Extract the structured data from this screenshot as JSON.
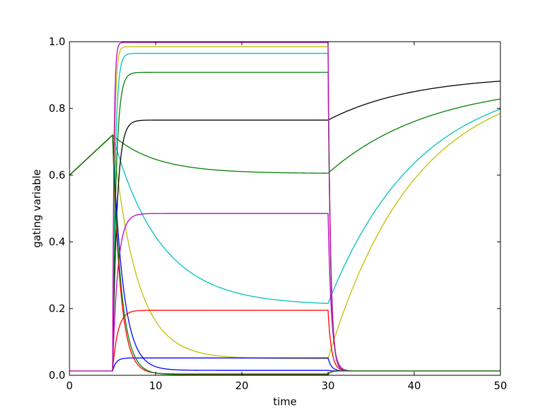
{
  "chart_data": {
    "type": "line",
    "title": "",
    "xlabel": "time",
    "ylabel": "gating variable",
    "xlim": [
      0,
      50
    ],
    "ylim": [
      0,
      1
    ],
    "xticks": [
      0,
      10,
      20,
      30,
      40,
      50
    ],
    "yticks": [
      0.0,
      0.2,
      0.4,
      0.6,
      0.8,
      1.0
    ],
    "xtick_labels": [
      "0",
      "10",
      "20",
      "30",
      "40",
      "50"
    ],
    "ytick_labels": [
      "0.0",
      "0.2",
      "0.4",
      "0.6",
      "0.8",
      "1.0"
    ],
    "grid": false,
    "legend": "none",
    "stimulus": {
      "on": 5,
      "off": 30
    },
    "series": [
      {
        "color": "#008000",
        "rest": 0.6,
        "pre_rise": 0.72,
        "during_target": 0.605,
        "tau_during": 5.0,
        "post_target": 0.88,
        "tau_post": 12.0
      },
      {
        "color": "#00bfbf",
        "rest": 0.6,
        "pre_rise": 0.72,
        "during_target": 0.21,
        "tau_during": 5.5,
        "post_target": 0.9,
        "tau_post": 10.5
      },
      {
        "color": "#bfbf00",
        "rest": 0.6,
        "pre_rise": 0.72,
        "during_target": 0.05,
        "tau_during": 2.8,
        "post_target": 0.9,
        "tau_post": 10.0
      },
      {
        "color": "#000000",
        "rest": 0.013,
        "during_target": 0.765,
        "tau_during": 0.5,
        "post_target": 0.9,
        "tau_post": 10.0
      },
      {
        "color": "#bf00bf",
        "rest": 0.013,
        "during_target": 0.485,
        "tau_during": 0.6,
        "post_target": 0.013,
        "tau_post": 0.4
      },
      {
        "color": "#ff0000",
        "rest": 0.013,
        "during_target": 0.195,
        "tau_during": 0.6,
        "post_target": 0.013,
        "tau_post": 0.4
      },
      {
        "color": "#0000ff",
        "rest": 0.013,
        "during_target": 0.052,
        "tau_during": 0.4,
        "post_target": 0.013,
        "tau_post": 0.4
      },
      {
        "color": "#008000",
        "rest": 0.013,
        "during_target": 0.908,
        "tau_during": 0.4,
        "post_target": 0.013,
        "tau_post": 0.3
      },
      {
        "color": "#00bfbf",
        "rest": 0.013,
        "during_target": 0.965,
        "tau_during": 0.3,
        "post_target": 0.013,
        "tau_post": 0.3
      },
      {
        "color": "#bfbf00",
        "rest": 0.013,
        "during_target": 0.985,
        "tau_during": 0.2,
        "post_target": 0.013,
        "tau_post": 0.3
      },
      {
        "color": "#bf00bf",
        "rest": 0.013,
        "during_target": 0.998,
        "tau_during": 0.15,
        "post_target": 0.013,
        "tau_post": 0.3
      },
      {
        "color": "#0000ff",
        "rest": 0.6,
        "pre_rise": 0.72,
        "during_target": 0.015,
        "tau_during": 1.2,
        "post_target": 0.013,
        "tau_post": 0.3
      },
      {
        "color": "#ff0000",
        "rest": 0.6,
        "pre_rise": 0.72,
        "during_target": 0.004,
        "tau_during": 0.9,
        "post_target": 0.013,
        "tau_post": 0.3
      },
      {
        "color": "#008000",
        "rest": 0.6,
        "pre_rise": 0.72,
        "during_target": 0.002,
        "tau_during": 1.0,
        "post_target": 0.013,
        "tau_post": 0.3
      }
    ]
  }
}
